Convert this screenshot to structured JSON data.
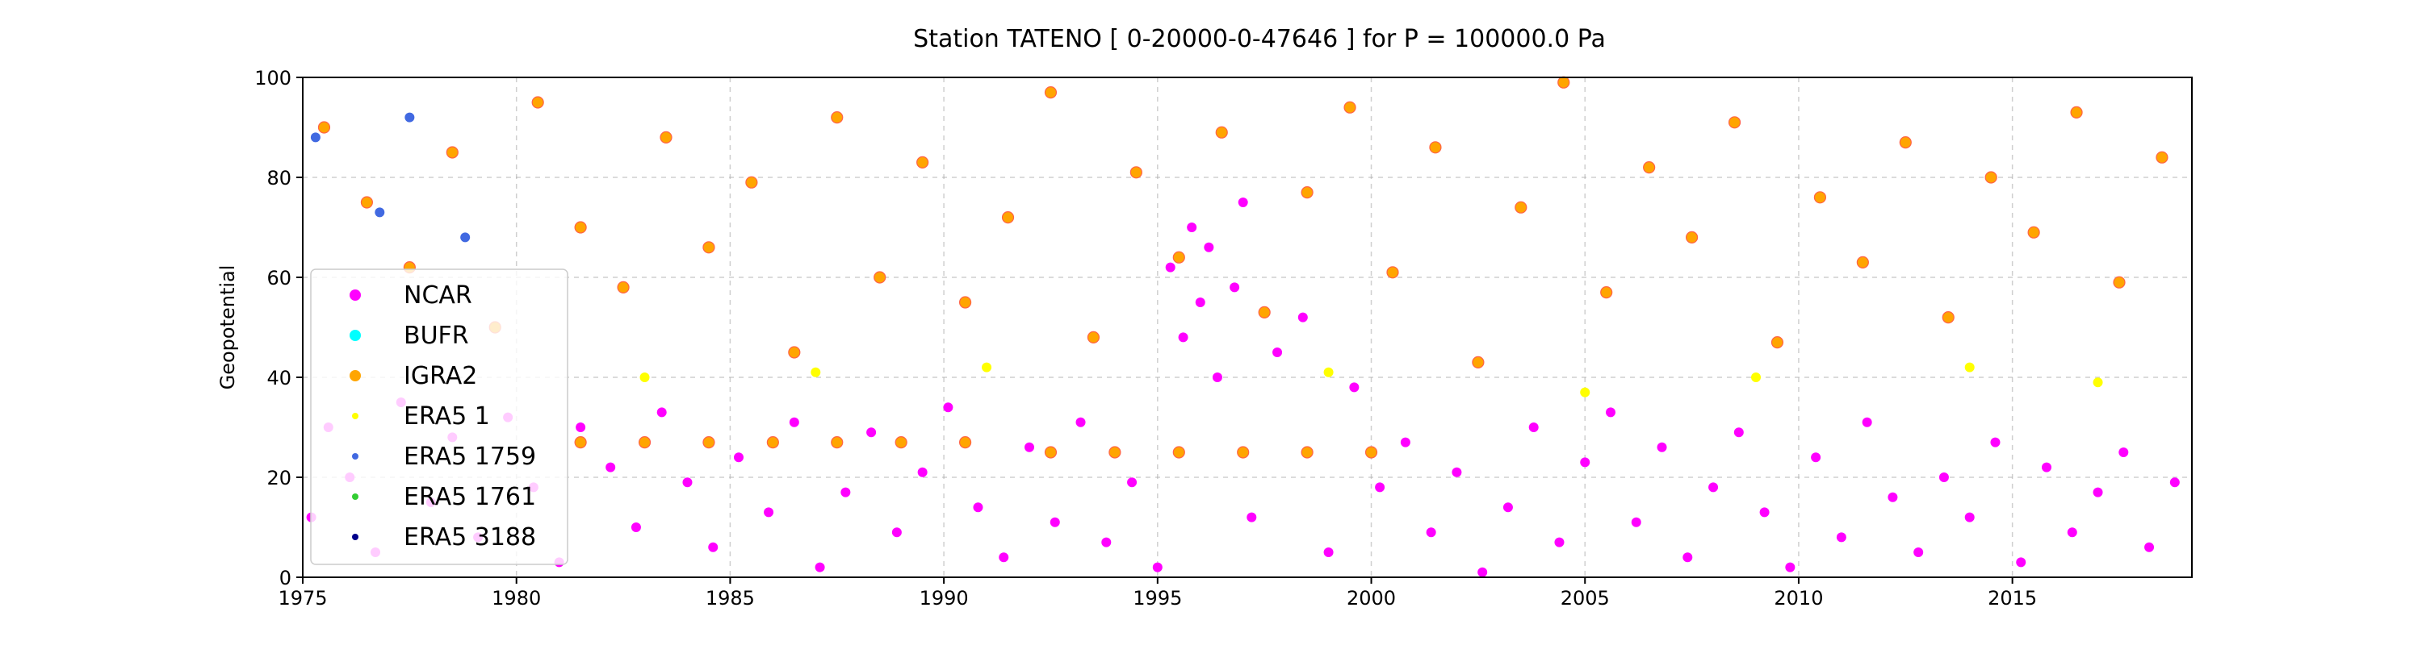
{
  "chart_data": {
    "type": "scatter",
    "title": "Station  TATENO [ 0-20000-0-47646 ]  for P = 100000.0 Pa",
    "xlabel": "",
    "ylabel": "Geopotential",
    "xlim": [
      1975,
      2019.2
    ],
    "ylim": [
      0,
      100
    ],
    "xticks": [
      "1975",
      "1980",
      "1985",
      "1990",
      "1995",
      "2000",
      "2005",
      "2010",
      "2015"
    ],
    "yticks": [
      "0",
      "20",
      "40",
      "60",
      "80",
      "100"
    ],
    "grid": true,
    "legend_position": "lower-left",
    "series": [
      {
        "name": "NCAR",
        "color": "#ff00ff",
        "marker": "circle",
        "values": [
          [
            1975.2,
            12
          ],
          [
            1975.6,
            30
          ],
          [
            1976.1,
            20
          ],
          [
            1976.7,
            5
          ],
          [
            1977.3,
            35
          ],
          [
            1978.0,
            15
          ],
          [
            1978.5,
            28
          ],
          [
            1979.1,
            8
          ],
          [
            1979.8,
            32
          ],
          [
            1980.4,
            18
          ],
          [
            1981.0,
            3
          ],
          [
            1981.5,
            30
          ],
          [
            1982.2,
            22
          ],
          [
            1982.8,
            10
          ],
          [
            1983.4,
            33
          ],
          [
            1984.0,
            19
          ],
          [
            1984.6,
            6
          ],
          [
            1985.2,
            24
          ],
          [
            1985.9,
            13
          ],
          [
            1986.5,
            31
          ],
          [
            1987.1,
            2
          ],
          [
            1987.7,
            17
          ],
          [
            1988.3,
            29
          ],
          [
            1988.9,
            9
          ],
          [
            1989.5,
            21
          ],
          [
            1990.1,
            34
          ],
          [
            1990.8,
            14
          ],
          [
            1991.4,
            4
          ],
          [
            1992.0,
            26
          ],
          [
            1992.6,
            11
          ],
          [
            1993.2,
            31
          ],
          [
            1993.8,
            7
          ],
          [
            1994.4,
            19
          ],
          [
            1995.0,
            2
          ],
          [
            1995.3,
            62
          ],
          [
            1995.6,
            48
          ],
          [
            1996.0,
            55
          ],
          [
            1996.4,
            40
          ],
          [
            1996.8,
            58
          ],
          [
            1997.2,
            12
          ],
          [
            1997.8,
            45
          ],
          [
            1998.4,
            52
          ],
          [
            1999.0,
            5
          ],
          [
            1999.6,
            38
          ],
          [
            2000.2,
            18
          ],
          [
            2000.8,
            27
          ],
          [
            2001.4,
            9
          ],
          [
            2002.0,
            21
          ],
          [
            2002.6,
            1
          ],
          [
            2003.2,
            14
          ],
          [
            2003.8,
            30
          ],
          [
            2004.4,
            7
          ],
          [
            2005.0,
            23
          ],
          [
            2005.6,
            33
          ],
          [
            2006.2,
            11
          ],
          [
            2006.8,
            26
          ],
          [
            2007.4,
            4
          ],
          [
            2008.0,
            18
          ],
          [
            2008.6,
            29
          ],
          [
            2009.2,
            13
          ],
          [
            2009.8,
            2
          ],
          [
            2010.4,
            24
          ],
          [
            2011.0,
            8
          ],
          [
            2011.6,
            31
          ],
          [
            2012.2,
            16
          ],
          [
            2012.8,
            5
          ],
          [
            2013.4,
            20
          ],
          [
            2014.0,
            12
          ],
          [
            2014.6,
            27
          ],
          [
            2015.2,
            3
          ],
          [
            2015.8,
            22
          ],
          [
            2016.4,
            9
          ],
          [
            2017.0,
            17
          ],
          [
            2017.6,
            25
          ],
          [
            2018.2,
            6
          ],
          [
            2018.8,
            19
          ],
          [
            1995.8,
            70
          ],
          [
            1996.2,
            66
          ],
          [
            1997.0,
            75
          ]
        ]
      },
      {
        "name": "BUFR",
        "color": "#00ffff",
        "marker": "circle",
        "values": []
      },
      {
        "name": "IGRA2",
        "color": "#ffa500",
        "marker": "circle",
        "values": [
          [
            1975.5,
            90
          ],
          [
            1976.5,
            75
          ],
          [
            1977.5,
            62
          ],
          [
            1978.5,
            85
          ],
          [
            1979.5,
            50
          ],
          [
            1980.5,
            95
          ],
          [
            1981.5,
            70
          ],
          [
            1982.5,
            58
          ],
          [
            1983.5,
            88
          ],
          [
            1984.5,
            66
          ],
          [
            1985.5,
            79
          ],
          [
            1986.5,
            45
          ],
          [
            1987.5,
            92
          ],
          [
            1988.5,
            60
          ],
          [
            1989.5,
            83
          ],
          [
            1990.5,
            55
          ],
          [
            1991.5,
            72
          ],
          [
            1992.5,
            97
          ],
          [
            1993.5,
            48
          ],
          [
            1994.5,
            81
          ],
          [
            1995.5,
            64
          ],
          [
            1996.5,
            89
          ],
          [
            1997.5,
            53
          ],
          [
            1998.5,
            77
          ],
          [
            1999.5,
            94
          ],
          [
            2000.5,
            61
          ],
          [
            2001.5,
            86
          ],
          [
            2002.5,
            43
          ],
          [
            2003.5,
            74
          ],
          [
            2004.5,
            99
          ],
          [
            2005.5,
            57
          ],
          [
            2006.5,
            82
          ],
          [
            2007.5,
            68
          ],
          [
            2008.5,
            91
          ],
          [
            2009.5,
            47
          ],
          [
            2010.5,
            76
          ],
          [
            2011.5,
            63
          ],
          [
            2012.5,
            87
          ],
          [
            2013.5,
            52
          ],
          [
            2014.5,
            80
          ],
          [
            2015.5,
            69
          ],
          [
            2016.5,
            93
          ],
          [
            2017.5,
            59
          ],
          [
            2018.5,
            84
          ],
          [
            1981.5,
            27
          ],
          [
            1983.0,
            27
          ],
          [
            1984.5,
            27
          ],
          [
            1986.0,
            27
          ],
          [
            1987.5,
            27
          ],
          [
            1989.0,
            27
          ],
          [
            1990.5,
            27
          ],
          [
            1992.5,
            25
          ],
          [
            1994.0,
            25
          ],
          [
            1995.5,
            25
          ],
          [
            1997.0,
            25
          ],
          [
            1998.5,
            25
          ],
          [
            2000.0,
            25
          ]
        ]
      },
      {
        "name": "ERA5 1",
        "color": "#ffff00",
        "marker": "circle",
        "values": [
          [
            1983,
            40
          ],
          [
            1987,
            41
          ],
          [
            1991,
            42
          ],
          [
            1999,
            41
          ],
          [
            2005,
            37
          ],
          [
            2009,
            40
          ],
          [
            2014,
            42
          ],
          [
            2017,
            39
          ]
        ]
      },
      {
        "name": "ERA5 1759",
        "color": "#4169e1",
        "marker": "circle",
        "values": [
          [
            1975.3,
            88
          ],
          [
            1976.8,
            73
          ],
          [
            1977.5,
            92
          ],
          [
            1978.8,
            68
          ]
        ]
      },
      {
        "name": "ERA5 1761",
        "color": "#32cd32",
        "marker": "circle",
        "values": []
      },
      {
        "name": "ERA5 3188",
        "color": "#00008b",
        "marker": "circle",
        "values": []
      }
    ]
  }
}
